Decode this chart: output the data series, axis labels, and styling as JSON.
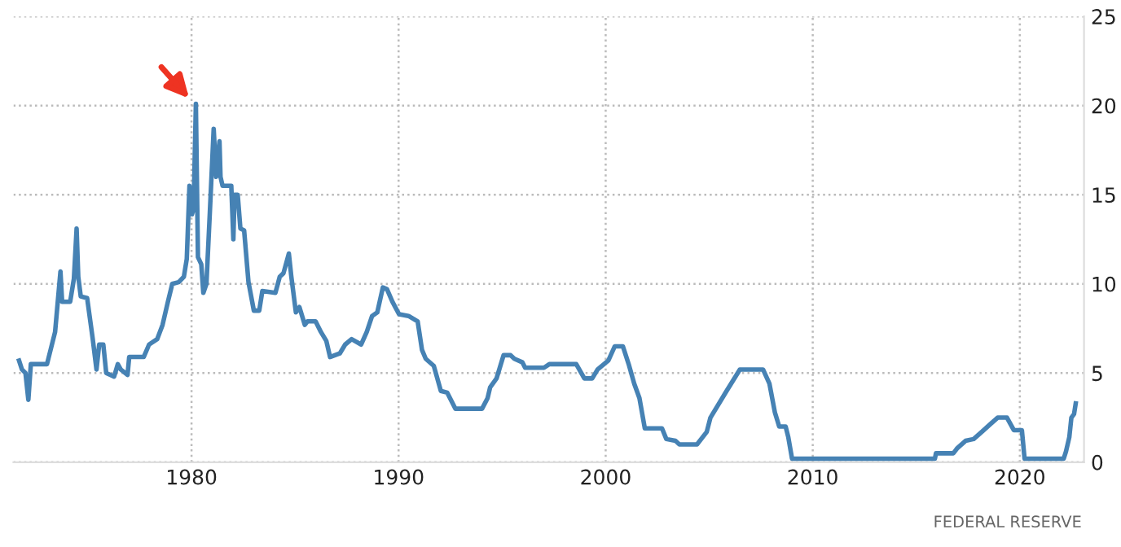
{
  "chart_data": {
    "type": "line",
    "x": [
      1971.67,
      1971.81,
      1971.98,
      1972.12,
      1972.24,
      1973.02,
      1973.41,
      1973.67,
      1973.75,
      1974.14,
      1974.32,
      1974.45,
      1974.53,
      1974.65,
      1974.96,
      1975.23,
      1975.41,
      1975.54,
      1975.74,
      1975.88,
      1976.26,
      1976.44,
      1976.58,
      1976.91,
      1976.99,
      1977.69,
      1977.95,
      1978.34,
      1978.6,
      1978.86,
      1979.07,
      1979.38,
      1979.63,
      1979.77,
      1979.9,
      1980.02,
      1980.1,
      1980.21,
      1980.31,
      1980.47,
      1980.57,
      1980.72,
      1980.88,
      1981.07,
      1981.19,
      1981.35,
      1981.4,
      1981.5,
      1981.92,
      1982.02,
      1982.08,
      1982.23,
      1982.36,
      1982.54,
      1982.75,
      1983.01,
      1983.27,
      1983.42,
      1984.05,
      1984.26,
      1984.44,
      1984.7,
      1984.82,
      1985.04,
      1985.21,
      1985.47,
      1985.6,
      1985.99,
      1986.25,
      1986.51,
      1986.69,
      1987.16,
      1987.42,
      1987.73,
      1988.19,
      1988.46,
      1988.72,
      1988.97,
      1989.24,
      1989.44,
      1989.7,
      1990.02,
      1990.48,
      1990.92,
      1991.13,
      1991.31,
      1991.7,
      1992.04,
      1992.35,
      1992.74,
      1994.03,
      1994.3,
      1994.42,
      1994.73,
      1995.07,
      1995.41,
      1995.59,
      1995.98,
      1996.11,
      1997.02,
      1997.28,
      1998.58,
      1998.97,
      1999.35,
      1999.61,
      2000.13,
      2000.44,
      2000.83,
      2001.11,
      2001.38,
      2001.63,
      2001.89,
      2002.72,
      2002.93,
      2003.37,
      2003.56,
      2004.41,
      2004.88,
      2005.06,
      2005.84,
      2006.48,
      2007.6,
      2007.91,
      2008.17,
      2008.38,
      2008.69,
      2008.82,
      2009.0,
      2015.9,
      2015.95,
      2016.79,
      2016.99,
      2017.38,
      2017.77,
      2018.16,
      2018.54,
      2018.93,
      2019.38,
      2019.71,
      2020.1,
      2020.23,
      2022.12,
      2022.23,
      2022.39,
      2022.49,
      2022.62,
      2022.7
    ],
    "series": [
      {
        "color": "#4682b4",
        "values": [
          5.7,
          5.2,
          5.0,
          3.5,
          5.5,
          5.5,
          7.3,
          10.7,
          9.0,
          9.0,
          10.3,
          13.1,
          10.4,
          9.3,
          9.2,
          6.9,
          5.2,
          6.6,
          6.6,
          5.0,
          4.8,
          5.5,
          5.2,
          4.9,
          5.9,
          5.9,
          6.6,
          6.9,
          7.7,
          9.0,
          10.0,
          10.1,
          10.4,
          11.4,
          15.5,
          13.9,
          14.2,
          20.1,
          11.5,
          11.1,
          9.5,
          10.0,
          13.9,
          18.7,
          16.0,
          18.0,
          16.0,
          15.5,
          15.5,
          12.5,
          15.0,
          15.0,
          13.1,
          13.0,
          10.1,
          8.5,
          8.5,
          9.6,
          9.5,
          10.4,
          10.6,
          11.7,
          10.4,
          8.4,
          8.7,
          7.7,
          7.9,
          7.9,
          7.3,
          6.8,
          5.9,
          6.1,
          6.6,
          6.9,
          6.6,
          7.3,
          8.2,
          8.4,
          9.8,
          9.7,
          9.0,
          8.3,
          8.2,
          7.9,
          6.3,
          5.8,
          5.4,
          4.0,
          3.9,
          3.0,
          3.0,
          3.6,
          4.2,
          4.7,
          6.0,
          6.0,
          5.8,
          5.6,
          5.3,
          5.3,
          5.5,
          5.5,
          4.7,
          4.7,
          5.2,
          5.7,
          6.5,
          6.5,
          5.5,
          4.4,
          3.6,
          1.9,
          1.9,
          1.3,
          1.2,
          1.0,
          1.0,
          1.7,
          2.5,
          4.0,
          5.2,
          5.2,
          4.4,
          2.8,
          2.0,
          2.0,
          1.4,
          0.2,
          0.2,
          0.5,
          0.5,
          0.8,
          1.2,
          1.3,
          1.7,
          2.1,
          2.5,
          2.5,
          1.8,
          1.8,
          0.2,
          0.2,
          0.6,
          1.4,
          2.5,
          2.7,
          3.3
        ]
      }
    ],
    "xlim": [
      1971.4,
      2023.1
    ],
    "xticks": [
      1980,
      1990,
      2000,
      2010,
      2020
    ],
    "ylim": [
      0,
      25
    ],
    "yticks": [
      0,
      5,
      10,
      15,
      20,
      25
    ],
    "grid": true,
    "line_style": "solid",
    "marker": "none",
    "annotations": [
      "FEDERAL RESERVE"
    ]
  }
}
